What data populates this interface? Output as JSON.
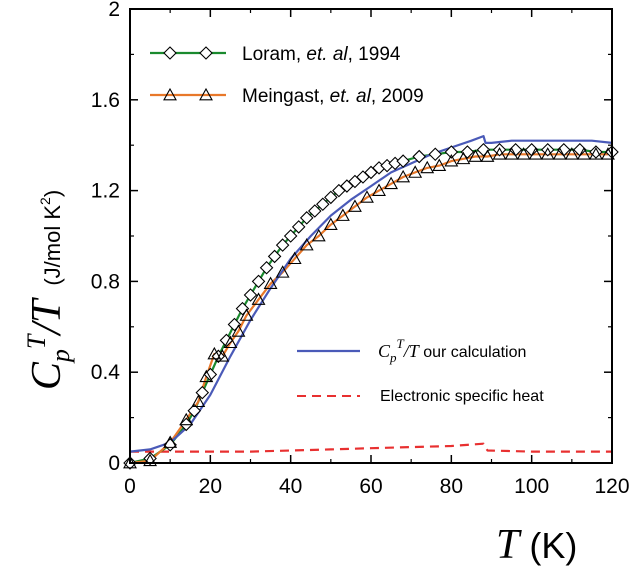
{
  "chart_data": {
    "type": "line",
    "xlabel": {
      "symbol": "T",
      "unit": " (K)"
    },
    "ylabel": {
      "symbol": "C",
      "sub": "p",
      "sup": "T",
      "slash": "/",
      "den": "T",
      "unit": "(J/mol K",
      "unit_sup": "2",
      "unit_close": ")"
    },
    "xlim": [
      0,
      120
    ],
    "ylim": [
      0,
      2
    ],
    "xticks": [
      "0",
      "20",
      "40",
      "60",
      "80",
      "100",
      "120"
    ],
    "yticks": [
      "0",
      "0.4",
      "0.8",
      "1.2",
      "1.6",
      "2"
    ],
    "legend_placement": "top-left and lower-right",
    "series": [
      {
        "name": "Loram, et. al, 1994",
        "name_parts": [
          "Loram, ",
          "et. al",
          ", 1994"
        ],
        "color": "#1a8a2e",
        "marker": "diamond",
        "x": [
          0,
          5,
          10,
          14,
          16,
          18,
          20,
          22,
          24,
          26,
          28,
          30,
          32,
          34,
          36,
          38,
          40,
          42,
          44,
          46,
          48,
          50,
          52,
          54,
          56,
          58,
          60,
          62,
          64,
          66,
          68,
          72,
          76,
          80,
          84,
          88,
          92,
          96,
          100,
          104,
          108,
          112,
          116,
          120
        ],
        "y": [
          0.0,
          0.02,
          0.08,
          0.17,
          0.23,
          0.31,
          0.39,
          0.47,
          0.54,
          0.61,
          0.68,
          0.74,
          0.8,
          0.86,
          0.91,
          0.96,
          1.0,
          1.04,
          1.08,
          1.11,
          1.14,
          1.17,
          1.2,
          1.22,
          1.24,
          1.26,
          1.28,
          1.3,
          1.31,
          1.32,
          1.33,
          1.35,
          1.36,
          1.37,
          1.37,
          1.38,
          1.38,
          1.38,
          1.38,
          1.38,
          1.38,
          1.38,
          1.37,
          1.37
        ]
      },
      {
        "name": "Meingast, et. al, 2009",
        "name_parts": [
          "Meingast, ",
          "et. al",
          ", 2009"
        ],
        "color": "#e8782a",
        "marker": "triangle",
        "x": [
          0,
          5,
          10,
          14,
          17,
          19,
          21,
          23,
          25,
          27,
          29,
          32,
          35,
          38,
          41,
          44,
          47,
          50,
          53,
          56,
          59,
          62,
          65,
          68,
          71,
          74,
          77,
          80,
          83,
          86,
          89,
          92,
          95,
          98,
          101,
          104,
          107,
          110,
          113,
          116,
          119
        ],
        "y": [
          0.0,
          0.01,
          0.09,
          0.19,
          0.27,
          0.38,
          0.48,
          0.47,
          0.53,
          0.58,
          0.65,
          0.72,
          0.79,
          0.84,
          0.9,
          0.96,
          1.0,
          1.05,
          1.09,
          1.13,
          1.17,
          1.2,
          1.23,
          1.26,
          1.28,
          1.3,
          1.31,
          1.33,
          1.34,
          1.35,
          1.35,
          1.36,
          1.36,
          1.36,
          1.36,
          1.36,
          1.36,
          1.36,
          1.36,
          1.36,
          1.36
        ]
      },
      {
        "name": "C_p^T/T our calculation",
        "name_parts": [
          "C",
          "p",
          "T",
          "/",
          "T",
          " our calculation"
        ],
        "color": "#4a5ab8",
        "marker": "none",
        "x": [
          0,
          5,
          10,
          15,
          20,
          25,
          30,
          35,
          40,
          45,
          50,
          55,
          60,
          65,
          70,
          75,
          80,
          85,
          88,
          88.5,
          90,
          95,
          100,
          105,
          110,
          115,
          120
        ],
        "y": [
          0.05,
          0.06,
          0.09,
          0.17,
          0.3,
          0.47,
          0.63,
          0.77,
          0.9,
          1.0,
          1.09,
          1.16,
          1.22,
          1.28,
          1.32,
          1.36,
          1.39,
          1.42,
          1.44,
          1.41,
          1.41,
          1.42,
          1.42,
          1.42,
          1.42,
          1.42,
          1.41
        ]
      },
      {
        "name": "Electronic specific heat",
        "color": "#e83030",
        "marker": "none",
        "dash": true,
        "x": [
          0,
          10,
          20,
          30,
          40,
          50,
          60,
          70,
          80,
          88,
          89,
          100,
          110,
          120
        ],
        "y": [
          0.05,
          0.05,
          0.05,
          0.05,
          0.055,
          0.06,
          0.065,
          0.07,
          0.075,
          0.085,
          0.055,
          0.05,
          0.05,
          0.05
        ]
      }
    ]
  }
}
